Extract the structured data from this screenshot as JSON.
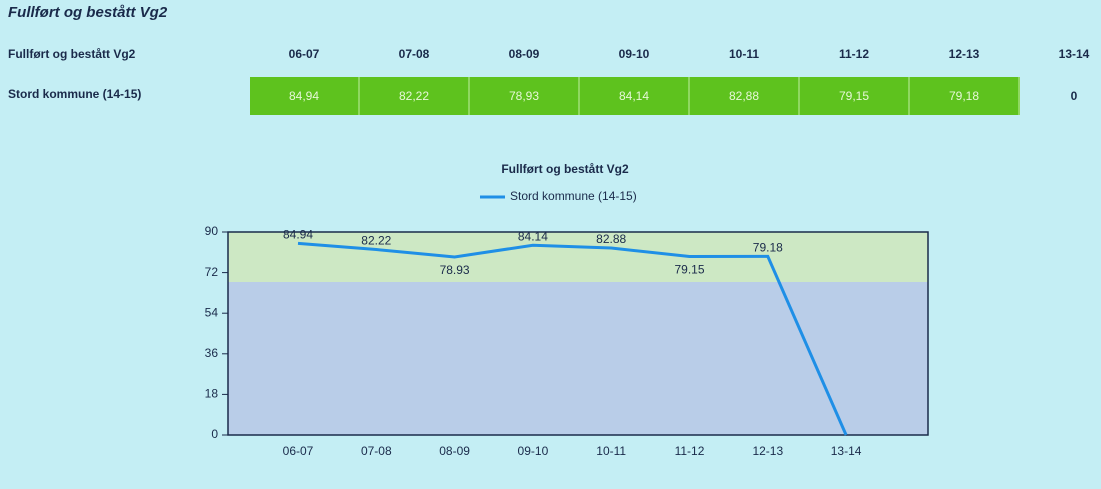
{
  "title": "Fullført og bestått Vg2",
  "table": {
    "header": [
      "Fullført og bestått Vg2",
      "06-07",
      "07-08",
      "08-09",
      "09-10",
      "10-11",
      "11-12",
      "12-13",
      "13-14"
    ],
    "rows": [
      [
        "Stord kommune (14-15)",
        "84,94",
        "82,22",
        "78,93",
        "84,14",
        "82,88",
        "79,15",
        "79,18",
        "0"
      ]
    ]
  },
  "chart_data": {
    "type": "line",
    "title": "Fullført og bestått Vg2",
    "categories": [
      "06-07",
      "07-08",
      "08-09",
      "09-10",
      "10-11",
      "11-12",
      "12-13",
      "13-14"
    ],
    "series": [
      {
        "name": "Stord kommune (14-15)",
        "color": "#1f8fe6",
        "values": [
          84.94,
          82.22,
          78.93,
          84.14,
          82.88,
          79.15,
          79.18,
          0
        ],
        "value_labels": [
          "84.94",
          "82.22",
          "78.93",
          "84.14",
          "82.88",
          "79.15",
          "79.18",
          null
        ]
      }
    ],
    "ylim": [
      0,
      90
    ],
    "yticks": [
      0,
      18,
      36,
      54,
      72,
      90
    ]
  }
}
